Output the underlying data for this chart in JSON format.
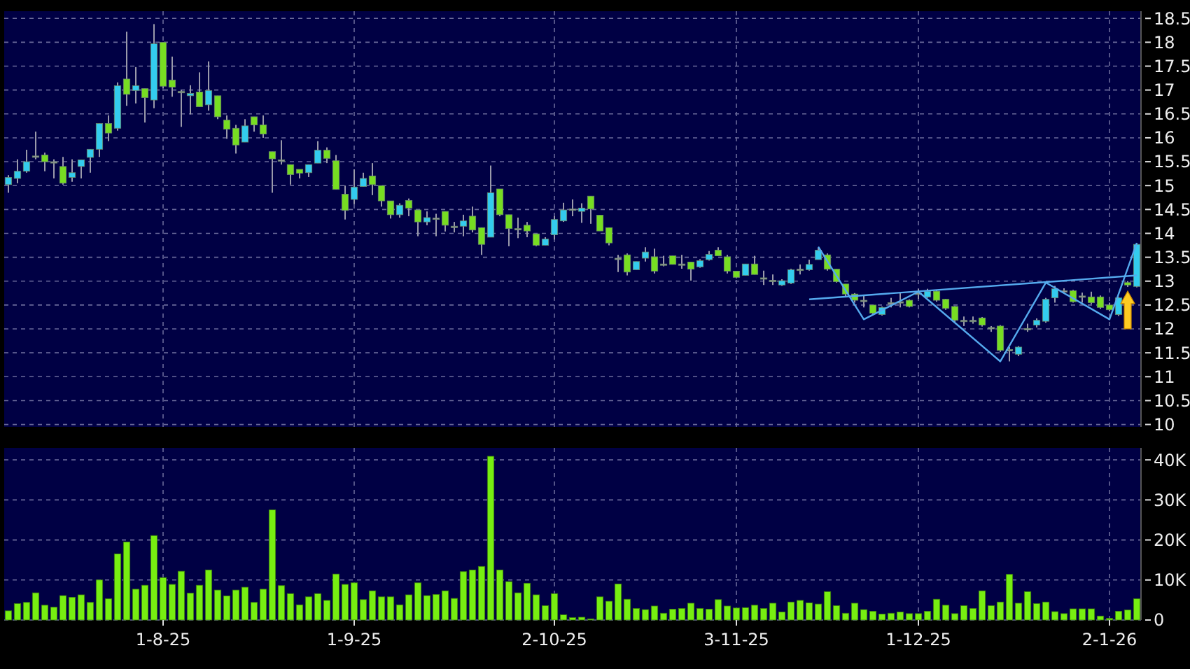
{
  "chart_data": [
    {
      "type": "candlestick",
      "grid": true,
      "tick_labels": "y",
      "categories": [
        null,
        null,
        null,
        null,
        null,
        null,
        null,
        null,
        null,
        null,
        null,
        null,
        null,
        null,
        null,
        null,
        null,
        null,
        null,
        null,
        null,
        null,
        null,
        null,
        null,
        null,
        null,
        null,
        null,
        null,
        null,
        null,
        null,
        null,
        null,
        null,
        null,
        null,
        null,
        null,
        null,
        null,
        null,
        null,
        null,
        null,
        null,
        null,
        null,
        null,
        null,
        null,
        null,
        null,
        null,
        null,
        null,
        null,
        null,
        null,
        null,
        null,
        null,
        null,
        null,
        null,
        null,
        null,
        null,
        null,
        null,
        null,
        null,
        null,
        null,
        null,
        null,
        null,
        null,
        null,
        null,
        null,
        null,
        null,
        null,
        null,
        null,
        null,
        null,
        null,
        null,
        null,
        null,
        null,
        null,
        null,
        null,
        null,
        null,
        null,
        null,
        null,
        null,
        null,
        null,
        null,
        null,
        null,
        null,
        null,
        null,
        null,
        null,
        null,
        null,
        null,
        null,
        null,
        null,
        null,
        null,
        null,
        null,
        null,
        null
      ],
      "ylim": [
        9.95,
        18.65
      ],
      "yticks": [
        10,
        10.5,
        11,
        11.5,
        12,
        12.5,
        13,
        13.5,
        14,
        14.5,
        15,
        15.5,
        16,
        16.5,
        17,
        17.5,
        18,
        18.5
      ],
      "ohlc": [
        [
          15.02,
          15.22,
          14.85,
          15.17
        ],
        [
          15.15,
          15.55,
          15.05,
          15.3
        ],
        [
          15.3,
          15.75,
          15.27,
          15.5
        ],
        [
          15.62,
          16.13,
          15.55,
          15.62
        ],
        [
          15.64,
          15.69,
          15.3,
          15.5
        ],
        [
          15.5,
          15.55,
          15.15,
          15.5
        ],
        [
          15.4,
          15.6,
          15.02,
          15.05
        ],
        [
          15.17,
          15.55,
          15.08,
          15.27
        ],
        [
          15.4,
          15.54,
          15.15,
          15.54
        ],
        [
          15.59,
          15.76,
          15.27,
          15.76
        ],
        [
          15.76,
          16.3,
          15.6,
          16.3
        ],
        [
          16.3,
          16.47,
          15.93,
          16.1
        ],
        [
          16.2,
          17.16,
          16.15,
          17.09
        ],
        [
          17.23,
          18.22,
          16.67,
          16.91
        ],
        [
          16.99,
          17.48,
          16.72,
          17.09
        ],
        [
          17.03,
          17.03,
          16.32,
          16.84
        ],
        [
          16.79,
          18.38,
          16.62,
          17.97
        ],
        [
          18.0,
          18.0,
          17.04,
          17.08
        ],
        [
          17.21,
          17.7,
          16.86,
          17.06
        ],
        [
          16.97,
          17.0,
          16.23,
          16.97
        ],
        [
          16.88,
          17.1,
          16.49,
          16.93
        ],
        [
          16.96,
          17.37,
          16.65,
          16.65
        ],
        [
          16.69,
          17.6,
          16.57,
          16.99
        ],
        [
          16.88,
          16.88,
          16.39,
          16.44
        ],
        [
          16.37,
          16.47,
          15.98,
          16.18
        ],
        [
          16.2,
          16.27,
          15.67,
          15.85
        ],
        [
          15.91,
          16.39,
          15.91,
          16.25
        ],
        [
          16.44,
          16.44,
          16.13,
          16.27
        ],
        [
          16.27,
          16.47,
          16.0,
          16.08
        ],
        [
          15.71,
          15.71,
          14.85,
          15.56
        ],
        [
          15.54,
          15.95,
          15.44,
          15.54
        ],
        [
          15.44,
          15.44,
          15.02,
          15.23
        ],
        [
          15.34,
          15.34,
          15.15,
          15.26
        ],
        [
          15.27,
          15.44,
          15.18,
          15.44
        ],
        [
          15.47,
          15.93,
          15.47,
          15.74
        ],
        [
          15.74,
          15.8,
          15.47,
          15.57
        ],
        [
          15.52,
          15.64,
          14.92,
          14.92
        ],
        [
          14.82,
          15.0,
          14.29,
          14.48
        ],
        [
          14.71,
          15.34,
          14.61,
          14.97
        ],
        [
          14.98,
          15.27,
          14.98,
          15.15
        ],
        [
          15.2,
          15.47,
          14.8,
          15.02
        ],
        [
          15.0,
          15.0,
          14.56,
          14.68
        ],
        [
          14.68,
          14.68,
          14.31,
          14.39
        ],
        [
          14.39,
          14.63,
          14.33,
          14.59
        ],
        [
          14.69,
          14.73,
          14.36,
          14.53
        ],
        [
          14.49,
          14.49,
          13.94,
          14.24
        ],
        [
          14.24,
          14.46,
          14.17,
          14.33
        ],
        [
          14.32,
          14.41,
          13.94,
          14.32
        ],
        [
          14.46,
          14.46,
          14.04,
          14.17
        ],
        [
          14.15,
          14.24,
          14.02,
          14.15
        ],
        [
          14.15,
          14.39,
          13.94,
          14.26
        ],
        [
          14.36,
          14.56,
          14.02,
          14.07
        ],
        [
          14.12,
          14.12,
          13.55,
          13.77
        ],
        [
          13.92,
          15.42,
          13.92,
          14.85
        ],
        [
          14.93,
          14.93,
          14.36,
          14.39
        ],
        [
          14.39,
          14.39,
          13.73,
          14.1
        ],
        [
          14.1,
          14.33,
          13.9,
          14.1
        ],
        [
          14.17,
          14.24,
          13.92,
          14.05
        ],
        [
          13.99,
          13.99,
          13.73,
          13.75
        ],
        [
          13.75,
          13.92,
          13.75,
          13.88
        ],
        [
          13.97,
          14.36,
          13.87,
          14.29
        ],
        [
          14.26,
          14.64,
          14.24,
          14.49
        ],
        [
          14.51,
          14.71,
          14.36,
          14.51
        ],
        [
          14.46,
          14.63,
          14.22,
          14.53
        ],
        [
          14.78,
          14.78,
          14.2,
          14.51
        ],
        [
          14.38,
          14.38,
          14.05,
          14.05
        ],
        [
          14.12,
          14.12,
          13.75,
          13.8
        ],
        [
          13.48,
          13.55,
          13.19,
          13.48
        ],
        [
          13.55,
          13.58,
          13.12,
          13.19
        ],
        [
          13.24,
          13.41,
          13.24,
          13.41
        ],
        [
          13.48,
          13.71,
          13.41,
          13.61
        ],
        [
          13.51,
          13.68,
          13.16,
          13.21
        ],
        [
          13.36,
          13.53,
          13.31,
          13.36
        ],
        [
          13.53,
          13.53,
          13.35,
          13.35
        ],
        [
          13.36,
          13.55,
          13.26,
          13.36
        ],
        [
          13.4,
          13.4,
          13.01,
          13.25
        ],
        [
          13.3,
          13.46,
          13.28,
          13.43
        ],
        [
          13.45,
          13.63,
          13.43,
          13.56
        ],
        [
          13.65,
          13.71,
          13.53,
          13.53
        ],
        [
          13.51,
          13.55,
          13.16,
          13.21
        ],
        [
          13.21,
          13.21,
          13.06,
          13.08
        ],
        [
          13.12,
          13.36,
          13.12,
          13.36
        ],
        [
          13.36,
          13.53,
          13.14,
          13.14
        ],
        [
          13.07,
          13.22,
          12.92,
          13.07
        ],
        [
          13.02,
          13.14,
          12.92,
          13.02
        ],
        [
          12.92,
          13.04,
          12.9,
          13.01
        ],
        [
          12.96,
          13.26,
          12.94,
          13.24
        ],
        [
          13.25,
          13.35,
          13.14,
          13.25
        ],
        [
          13.24,
          13.45,
          13.22,
          13.35
        ],
        [
          13.45,
          13.7,
          13.45,
          13.65
        ],
        [
          13.55,
          13.58,
          13.22,
          13.25
        ],
        [
          13.25,
          13.25,
          12.97,
          12.99
        ],
        [
          12.94,
          12.94,
          12.68,
          12.73
        ],
        [
          12.73,
          12.75,
          12.55,
          12.6
        ],
        [
          12.6,
          12.7,
          12.45,
          12.6
        ],
        [
          12.5,
          12.5,
          12.3,
          12.33
        ],
        [
          12.3,
          12.47,
          12.28,
          12.45
        ],
        [
          12.55,
          12.65,
          12.45,
          12.55
        ],
        [
          12.57,
          12.75,
          12.45,
          12.57
        ],
        [
          12.6,
          12.62,
          12.45,
          12.47
        ],
        [
          12.75,
          12.84,
          12.63,
          12.75
        ],
        [
          12.67,
          12.84,
          12.65,
          12.79
        ],
        [
          12.79,
          12.82,
          12.57,
          12.6
        ],
        [
          12.62,
          12.63,
          12.4,
          12.43
        ],
        [
          12.47,
          12.48,
          12.13,
          12.18
        ],
        [
          12.18,
          12.26,
          12.06,
          12.18
        ],
        [
          12.18,
          12.26,
          12.11,
          12.18
        ],
        [
          12.23,
          12.25,
          12.05,
          12.08
        ],
        [
          12.03,
          12.06,
          11.94,
          12.03
        ],
        [
          12.06,
          12.08,
          11.52,
          11.55
        ],
        [
          11.57,
          11.62,
          11.32,
          11.57
        ],
        [
          11.47,
          11.64,
          11.43,
          11.62
        ],
        [
          12.01,
          12.11,
          11.94,
          12.01
        ],
        [
          12.08,
          12.22,
          12.03,
          12.18
        ],
        [
          12.16,
          12.65,
          12.13,
          12.62
        ],
        [
          12.65,
          12.9,
          12.55,
          12.84
        ],
        [
          12.8,
          12.85,
          12.75,
          12.8
        ],
        [
          12.8,
          12.82,
          12.55,
          12.57
        ],
        [
          12.69,
          12.76,
          12.55,
          12.69
        ],
        [
          12.67,
          12.78,
          12.52,
          12.55
        ],
        [
          12.67,
          12.7,
          12.42,
          12.45
        ],
        [
          12.5,
          12.55,
          12.37,
          12.4
        ],
        [
          12.3,
          12.67,
          12.27,
          12.65
        ],
        [
          12.97,
          13.0,
          12.88,
          12.92
        ],
        [
          12.89,
          13.8,
          12.87,
          13.77
        ]
      ],
      "colors": [
        "#33ccee",
        "#33ccee",
        "#33ccee",
        "#999999",
        "#77dd22",
        "#999999",
        "#77dd22",
        "#33ccee",
        "#33ccee",
        "#33ccee",
        "#33ccee",
        "#77dd22",
        "#33ccee",
        "#77dd22",
        "#33ccee",
        "#77dd22",
        "#33ccee",
        "#77dd22",
        "#77dd22",
        "#999999",
        "#33ccee",
        "#77dd22",
        "#33ccee",
        "#77dd22",
        "#77dd22",
        "#77dd22",
        "#33ccee",
        "#77dd22",
        "#77dd22",
        "#77dd22",
        "#999999",
        "#77dd22",
        "#77dd22",
        "#33ccee",
        "#33ccee",
        "#77dd22",
        "#77dd22",
        "#77dd22",
        "#33ccee",
        "#33ccee",
        "#77dd22",
        "#77dd22",
        "#77dd22",
        "#33ccee",
        "#77dd22",
        "#77dd22",
        "#33ccee",
        "#999999",
        "#77dd22",
        "#999999",
        "#33ccee",
        "#77dd22",
        "#77dd22",
        "#33ccee",
        "#77dd22",
        "#77dd22",
        "#999999",
        "#77dd22",
        "#77dd22",
        "#33ccee",
        "#33ccee",
        "#33ccee",
        "#999999",
        "#33ccee",
        "#77dd22",
        "#77dd22",
        "#77dd22",
        "#999999",
        "#77dd22",
        "#33ccee",
        "#33ccee",
        "#77dd22",
        "#999999",
        "#77dd22",
        "#999999",
        "#77dd22",
        "#33ccee",
        "#33ccee",
        "#77dd22",
        "#77dd22",
        "#77dd22",
        "#33ccee",
        "#77dd22",
        "#999999",
        "#999999",
        "#33ccee",
        "#33ccee",
        "#999999",
        "#33ccee",
        "#33ccee",
        "#77dd22",
        "#77dd22",
        "#77dd22",
        "#77dd22",
        "#999999",
        "#77dd22",
        "#33ccee",
        "#999999",
        "#999999",
        "#77dd22",
        "#999999",
        "#33ccee",
        "#77dd22",
        "#77dd22",
        "#77dd22",
        "#999999",
        "#999999",
        "#77dd22",
        "#999999",
        "#77dd22",
        "#999999",
        "#33ccee",
        "#999999",
        "#33ccee",
        "#33ccee",
        "#33ccee",
        "#999999",
        "#77dd22",
        "#999999",
        "#77dd22",
        "#77dd22",
        "#77dd22",
        "#33ccee",
        "#77dd22",
        "#33ccee"
      ],
      "series": [
        {
          "type": "line",
          "color": "#55aaee",
          "values": [
            null,
            null,
            null,
            null,
            null,
            null,
            null,
            null,
            null,
            null,
            null,
            null,
            null,
            null,
            null,
            null,
            null,
            null,
            null,
            null,
            null,
            null,
            null,
            null,
            null,
            null,
            null,
            null,
            null,
            null,
            null,
            null,
            null,
            null,
            null,
            null,
            null,
            null,
            null,
            null,
            null,
            null,
            null,
            null,
            null,
            null,
            null,
            null,
            null,
            null,
            null,
            null,
            null,
            null,
            null,
            null,
            null,
            null,
            null,
            null,
            null,
            null,
            null,
            null,
            null,
            null,
            null,
            null,
            null,
            null,
            null,
            null,
            null,
            null,
            null,
            null,
            null,
            null,
            null,
            null,
            null,
            null,
            null,
            null,
            null,
            null,
            null,
            null,
            null,
            13.72,
            null,
            null,
            null,
            null,
            12.2,
            null,
            null,
            null,
            null,
            null,
            12.78,
            null,
            null,
            null,
            null,
            null,
            null,
            null,
            null,
            11.32,
            null,
            null,
            null,
            null,
            12.97,
            null,
            null,
            null,
            null,
            null,
            null,
            12.2,
            null,
            null,
            13.8
          ]
        },
        {
          "type": "line",
          "color": "#55aaee",
          "values": [
            null,
            null,
            null,
            null,
            null,
            null,
            null,
            null,
            null,
            null,
            null,
            null,
            null,
            null,
            null,
            null,
            null,
            null,
            null,
            null,
            null,
            null,
            null,
            null,
            null,
            null,
            null,
            null,
            null,
            null,
            null,
            null,
            null,
            null,
            null,
            null,
            null,
            null,
            null,
            null,
            null,
            null,
            null,
            null,
            null,
            null,
            null,
            null,
            null,
            null,
            null,
            null,
            null,
            null,
            null,
            null,
            null,
            null,
            null,
            null,
            null,
            null,
            null,
            null,
            null,
            null,
            null,
            null,
            null,
            null,
            null,
            null,
            null,
            null,
            null,
            null,
            null,
            null,
            null,
            null,
            null,
            null,
            null,
            null,
            null,
            null,
            null,
            null,
            12.62,
            null,
            null,
            null,
            null,
            null,
            null,
            null,
            null,
            null,
            null,
            null,
            null,
            null,
            null,
            null,
            null,
            null,
            null,
            null,
            null,
            null,
            null,
            null,
            null,
            null,
            null,
            null,
            null,
            null,
            null,
            null,
            null,
            null,
            null,
            null,
            13.12
          ]
        }
      ]
    },
    {
      "type": "bar",
      "grid": true,
      "color": "#77ee11",
      "categories": [
        null,
        null,
        null,
        null,
        null,
        null,
        null,
        null,
        null,
        null,
        null,
        null,
        null,
        null,
        null,
        null,
        null,
        "1-8-25",
        null,
        null,
        null,
        null,
        null,
        null,
        null,
        null,
        null,
        null,
        null,
        null,
        null,
        null,
        null,
        null,
        null,
        null,
        null,
        null,
        "1-9-25",
        null,
        null,
        null,
        null,
        null,
        null,
        null,
        null,
        null,
        null,
        null,
        null,
        null,
        null,
        null,
        null,
        null,
        null,
        null,
        null,
        null,
        "2-10-25",
        null,
        null,
        null,
        null,
        null,
        null,
        null,
        null,
        null,
        null,
        null,
        null,
        null,
        null,
        null,
        null,
        null,
        null,
        null,
        "3-11-25",
        null,
        null,
        null,
        null,
        null,
        null,
        null,
        null,
        null,
        null,
        null,
        null,
        null,
        null,
        null,
        null,
        null,
        null,
        null,
        "1-12-25",
        null,
        null,
        null,
        null,
        null,
        null,
        null,
        null,
        null,
        null,
        null,
        null,
        null,
        null,
        null,
        null,
        null,
        null,
        null,
        null,
        "2-1-26",
        null,
        null,
        null
      ],
      "ylim": [
        0,
        43000
      ],
      "yticks": [
        0,
        {
          "value": 10000,
          "label": "10K"
        },
        {
          "value": 20000,
          "label": "20K"
        },
        {
          "value": 30000,
          "label": "30K"
        },
        {
          "value": 40000,
          "label": "40K"
        }
      ],
      "values": [
        2300,
        4100,
        4400,
        6800,
        3700,
        3200,
        6100,
        5700,
        6300,
        4400,
        10000,
        5300,
        16500,
        19500,
        7700,
        8700,
        21100,
        10600,
        8900,
        12200,
        6700,
        8700,
        12500,
        7500,
        6000,
        7500,
        8200,
        4400,
        7700,
        27500,
        8600,
        6600,
        3800,
        5800,
        6600,
        4900,
        11500,
        8900,
        9300,
        5100,
        7300,
        5800,
        5800,
        3800,
        6300,
        9300,
        6100,
        6400,
        7300,
        5400,
        12100,
        12500,
        13400,
        40900,
        12500,
        9600,
        6800,
        9200,
        6300,
        3600,
        6600,
        1300,
        600,
        700,
        300,
        5800,
        4700,
        9000,
        5200,
        2900,
        2600,
        3500,
        1700,
        2700,
        2900,
        4200,
        2900,
        2700,
        5100,
        3500,
        3000,
        3100,
        3700,
        2900,
        4200,
        2000,
        4500,
        4900,
        4300,
        4000,
        7100,
        3600,
        1700,
        4200,
        2600,
        2200,
        1500,
        1700,
        2000,
        1600,
        1600,
        2200,
        5200,
        3700,
        1600,
        3600,
        2900,
        7300,
        3600,
        4500,
        11400,
        4200,
        7100,
        4100,
        4500,
        2100,
        1600,
        2800,
        2800,
        2800,
        1000,
        400,
        2200,
        2500,
        5300
      ]
    }
  ]
}
